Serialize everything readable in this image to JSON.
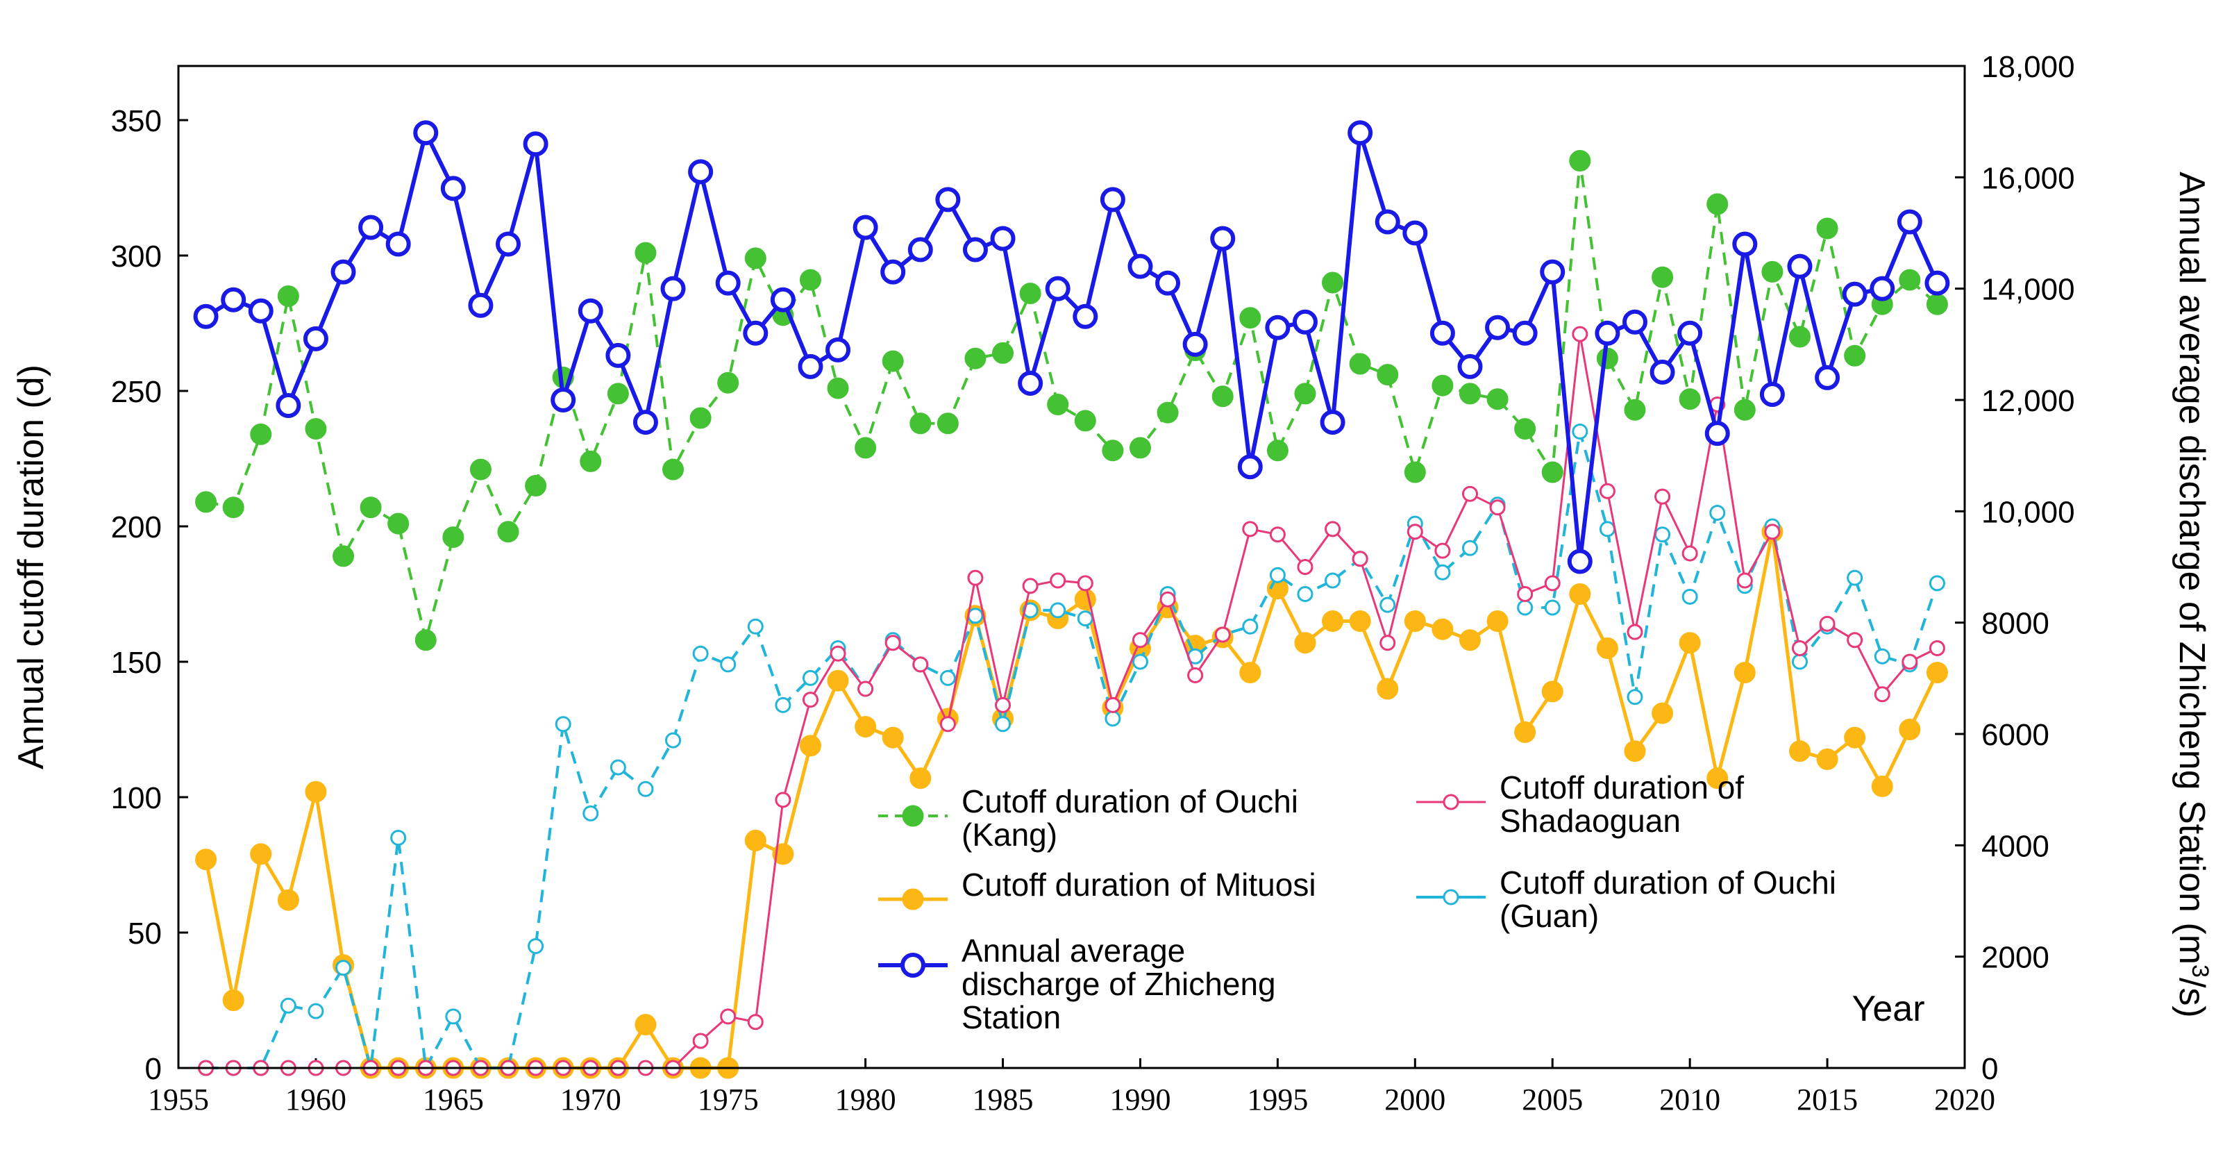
{
  "chart_data": {
    "type": "line",
    "title": "",
    "xlabel": "Year",
    "ylabel": "Annual cutoff duration (d)",
    "y2label_prefix": "Annual average discharge of Zhicheng Station (m",
    "y2label_sup": "3",
    "y2label_suffix": "/s)",
    "xlim": [
      1955,
      2020
    ],
    "ylim": [
      0,
      370
    ],
    "y2lim": [
      0,
      18000
    ],
    "xticks": [
      "1955",
      "1960",
      "1965",
      "1970",
      "1975",
      "1980",
      "1985",
      "1990",
      "1995",
      "2000",
      "2005",
      "2010",
      "2015",
      "2020"
    ],
    "yticks": [
      "0",
      "50",
      "100",
      "150",
      "200",
      "250",
      "300",
      "350"
    ],
    "y2ticks": [
      "0",
      "2000",
      "4000",
      "6000",
      "8000",
      "10,000",
      "12,000",
      "14,000",
      "16,000",
      "18,000"
    ],
    "x": [
      1956,
      1957,
      1958,
      1959,
      1960,
      1961,
      1962,
      1963,
      1964,
      1965,
      1966,
      1967,
      1968,
      1969,
      1970,
      1971,
      1972,
      1973,
      1974,
      1975,
      1976,
      1977,
      1978,
      1979,
      1980,
      1981,
      1982,
      1983,
      1984,
      1985,
      1986,
      1987,
      1988,
      1989,
      1990,
      1991,
      1992,
      1993,
      1994,
      1995,
      1996,
      1997,
      1998,
      1999,
      2000,
      2001,
      2002,
      2003,
      2004,
      2005,
      2006,
      2007,
      2008,
      2009,
      2010,
      2011,
      2012,
      2013,
      2014,
      2015,
      2016,
      2017,
      2018,
      2019
    ],
    "series": [
      {
        "name": "Cutoff duration of Ouchi (Kang)",
        "axis": "left",
        "color": "#44C234",
        "style": "dashed-filled",
        "values": [
          209,
          207,
          234,
          285,
          236,
          189,
          207,
          201,
          158,
          196,
          221,
          198,
          215,
          255,
          224,
          249,
          301,
          221,
          240,
          253,
          299,
          278,
          291,
          251,
          229,
          261,
          238,
          238,
          262,
          264,
          286,
          245,
          239,
          228,
          229,
          242,
          265,
          248,
          277,
          228,
          249,
          290,
          260,
          256,
          220,
          252,
          249,
          247,
          236,
          220,
          335,
          262,
          243,
          292,
          247,
          319,
          243,
          294,
          270,
          310,
          263,
          282,
          291,
          282
        ]
      },
      {
        "name": "Cutoff duration of Mituosi",
        "axis": "left",
        "color": "#FDB714",
        "style": "solid-filled",
        "values": [
          77,
          25,
          79,
          62,
          102,
          38,
          0,
          0,
          0,
          0,
          0,
          0,
          0,
          0,
          0,
          0,
          16,
          0,
          0,
          0,
          84,
          79,
          119,
          143,
          126,
          122,
          107,
          129,
          167,
          129,
          169,
          166,
          173,
          133,
          155,
          170,
          156,
          159,
          146,
          177,
          157,
          165,
          165,
          140,
          165,
          162,
          158,
          165,
          124,
          139,
          175,
          155,
          117,
          131,
          157,
          107,
          146,
          198,
          117,
          114,
          122,
          104,
          125,
          146
        ]
      },
      {
        "name": "Annual average discharge of Zhicheng Station",
        "axis": "right",
        "color": "#1A1AE6",
        "style": "solid-hollow",
        "values": [
          13500,
          13800,
          13600,
          11900,
          13100,
          14300,
          15100,
          14800,
          16800,
          15800,
          13700,
          14800,
          16600,
          12000,
          13600,
          12800,
          11600,
          14000,
          16100,
          14100,
          13200,
          13800,
          12600,
          12900,
          15100,
          14300,
          14700,
          15600,
          14700,
          14900,
          12300,
          14000,
          13500,
          15600,
          14400,
          14100,
          13000,
          14900,
          10800,
          13300,
          13400,
          11600,
          16800,
          15200,
          15000,
          13200,
          12600,
          13300,
          13200,
          14300,
          9100,
          13200,
          13400,
          12500,
          13200,
          11400,
          14800,
          12100,
          14400,
          12400,
          13900,
          14000,
          15200,
          14100
        ]
      },
      {
        "name": "Cutoff duration of Shadaoguan",
        "axis": "left",
        "color": "#E8387A",
        "style": "solid-hollow-small",
        "values": [
          0,
          0,
          0,
          0,
          0,
          0,
          0,
          0,
          0,
          0,
          0,
          0,
          0,
          0,
          0,
          0,
          0,
          0,
          10,
          19,
          17,
          99,
          136,
          153,
          140,
          157,
          149,
          127,
          181,
          134,
          178,
          180,
          179,
          134,
          158,
          173,
          145,
          160,
          199,
          197,
          185,
          199,
          188,
          157,
          198,
          191,
          212,
          207,
          175,
          179,
          271,
          213,
          161,
          211,
          190,
          245,
          180,
          198,
          155,
          164,
          158,
          138,
          150,
          155
        ]
      },
      {
        "name": "Cutoff duration of Ouchi (Guan)",
        "axis": "left",
        "color": "#22B5DA",
        "style": "dashed-hollow",
        "values": [
          0,
          0,
          0,
          23,
          21,
          37,
          0,
          85,
          0,
          19,
          0,
          0,
          45,
          127,
          94,
          111,
          103,
          121,
          153,
          149,
          163,
          134,
          144,
          155,
          140,
          158,
          149,
          144,
          167,
          127,
          169,
          169,
          166,
          129,
          150,
          175,
          152,
          160,
          163,
          182,
          175,
          180,
          188,
          171,
          201,
          183,
          192,
          208,
          170,
          170,
          235,
          199,
          137,
          197,
          174,
          205,
          178,
          200,
          150,
          163,
          181,
          152,
          149,
          179
        ]
      }
    ],
    "legend": {
      "placement": "center-bottom",
      "kang": [
        "Cutoff duration of Ouchi",
        "(Kang)"
      ],
      "mituosi": [
        "Cutoff duration of Mituosi"
      ],
      "zhicheng": [
        "Annual average",
        "discharge of Zhicheng",
        "Station"
      ],
      "shadaoguan": [
        "Cutoff duration of",
        "Shadaoguan"
      ],
      "guan": [
        "Cutoff duration of Ouchi",
        "(Guan)"
      ]
    }
  }
}
